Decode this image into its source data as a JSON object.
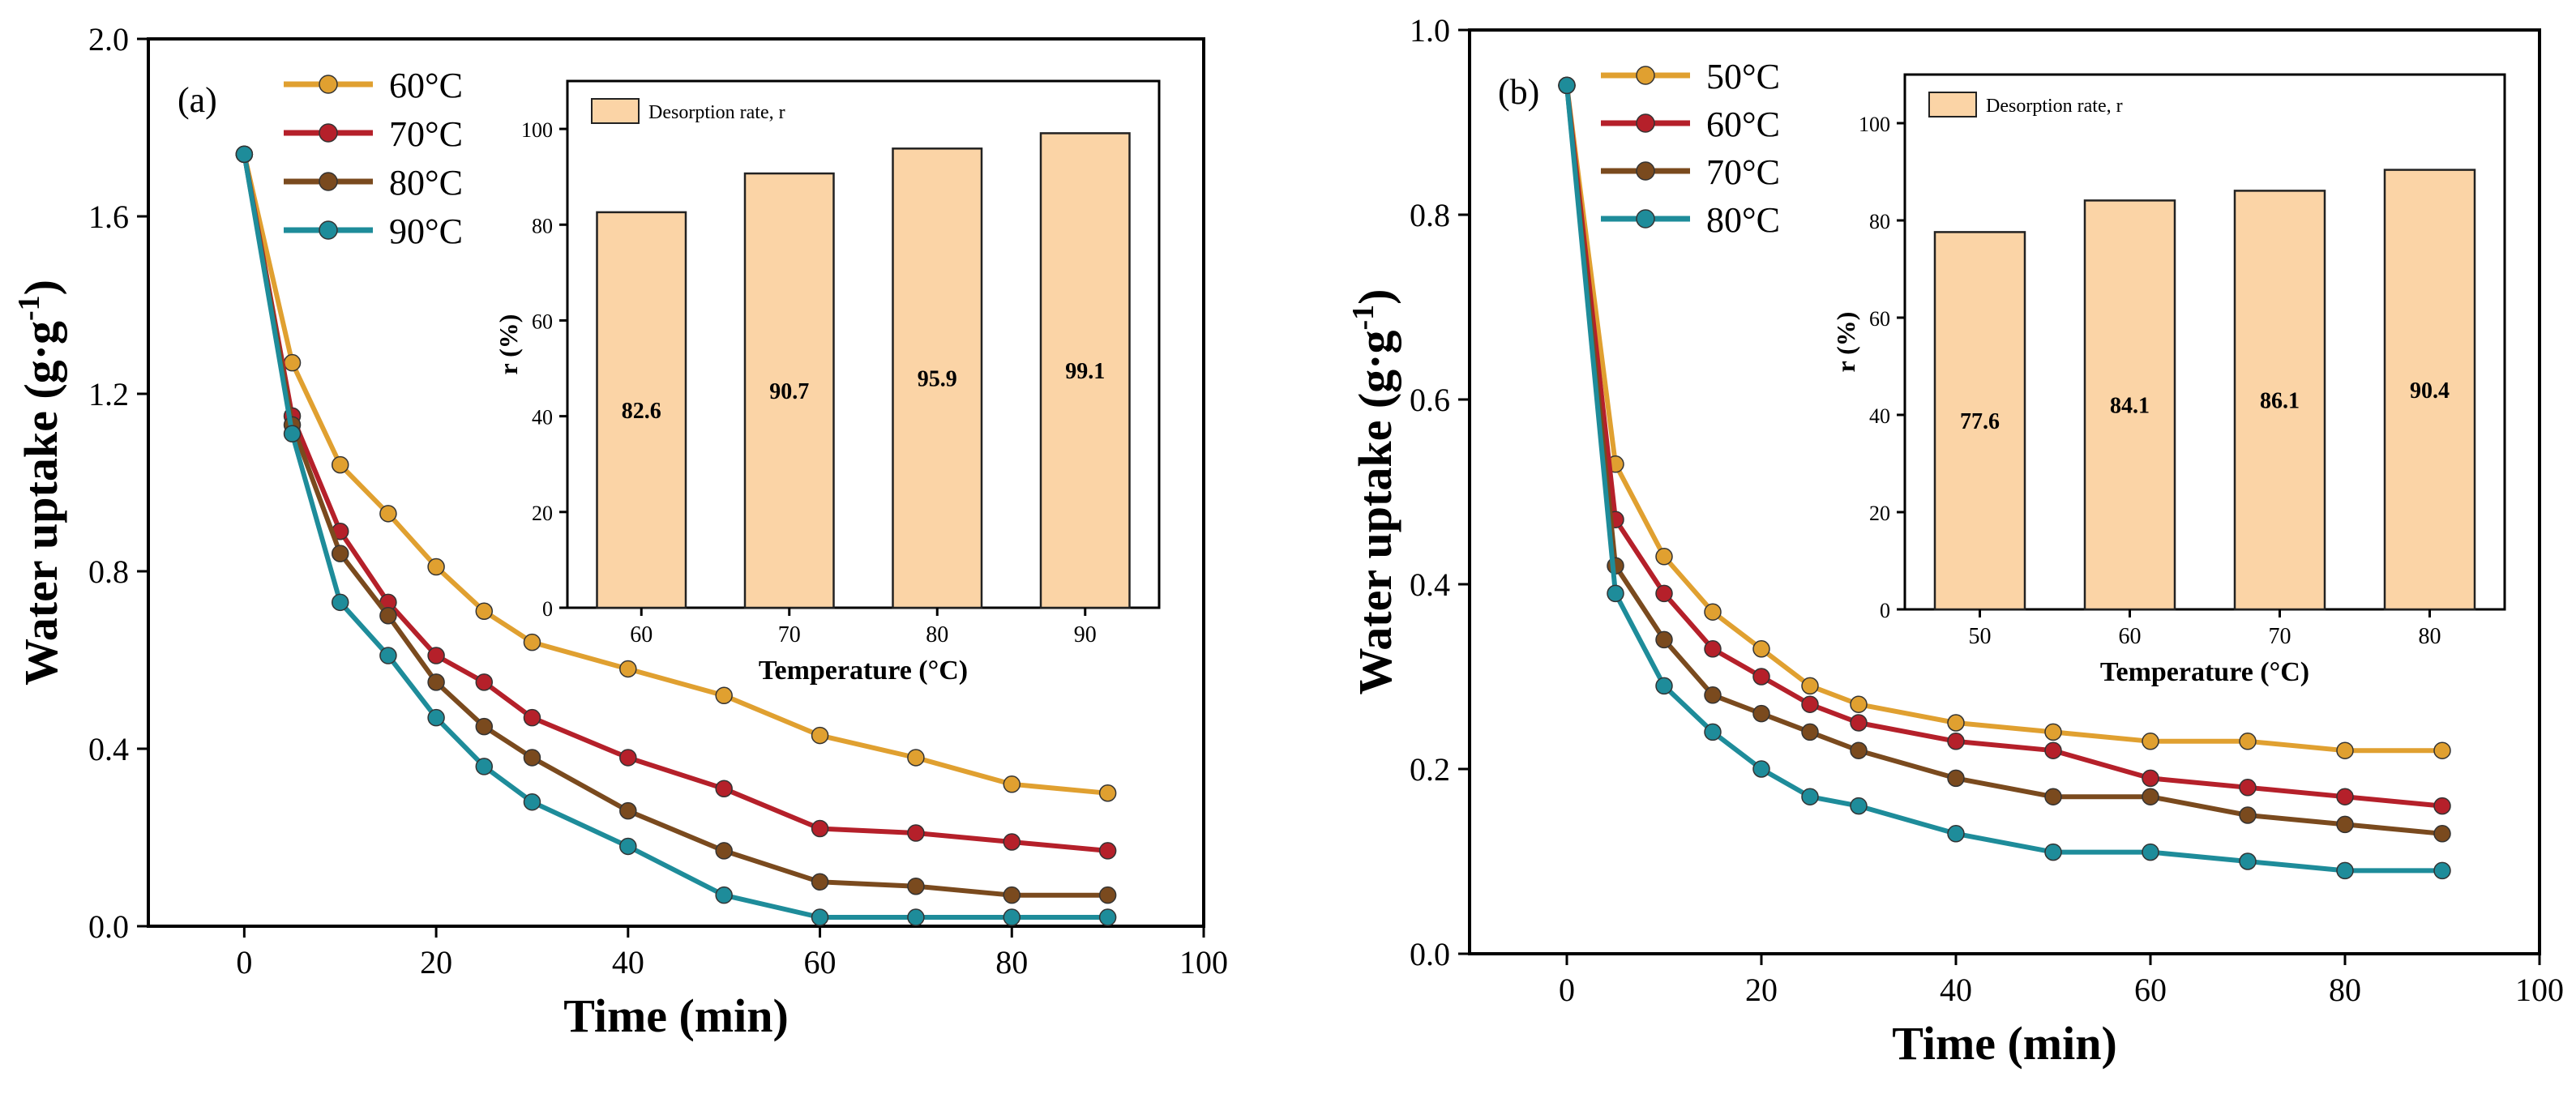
{
  "chart_data": [
    {
      "type": "line",
      "panel_label": "(a)",
      "xlabel": "Time (min)",
      "ylabel_main": "Water uptake (g·g",
      "ylabel_sup": "-1",
      "ylabel_end": ")",
      "xlim": [
        -10,
        100
      ],
      "ylim": [
        0,
        2.0
      ],
      "xticks": [
        0,
        20,
        40,
        60,
        80,
        100
      ],
      "xtick_labels": [
        "0",
        "20",
        "40",
        "60",
        "80",
        "100"
      ],
      "yticks": [
        0,
        0.4,
        0.8,
        1.2,
        1.6,
        2.0
      ],
      "ytick_labels": [
        "0.0",
        "0.4",
        "0.8",
        "1.2",
        "1.6",
        "2.0"
      ],
      "x": [
        0,
        5,
        10,
        15,
        20,
        25,
        30,
        40,
        50,
        60,
        70,
        80,
        90
      ],
      "series": [
        {
          "name": "60°C",
          "color": "#E0A030",
          "values": [
            1.74,
            1.27,
            1.04,
            0.93,
            0.81,
            0.71,
            0.64,
            0.58,
            0.52,
            0.43,
            0.38,
            0.32,
            0.3
          ]
        },
        {
          "name": "70°C",
          "color": "#B5202A",
          "values": [
            1.74,
            1.15,
            0.89,
            0.73,
            0.61,
            0.55,
            0.47,
            0.38,
            0.31,
            0.22,
            0.21,
            0.19,
            0.17
          ]
        },
        {
          "name": "80°C",
          "color": "#7A4A1E",
          "values": [
            1.74,
            1.13,
            0.84,
            0.7,
            0.55,
            0.45,
            0.38,
            0.26,
            0.17,
            0.1,
            0.09,
            0.07,
            0.07
          ]
        },
        {
          "name": "90°C",
          "color": "#1E8C9A",
          "values": [
            1.74,
            1.11,
            0.73,
            0.61,
            0.47,
            0.36,
            0.28,
            0.18,
            0.07,
            0.02,
            0.02,
            0.02,
            0.02
          ]
        }
      ],
      "inset": {
        "type": "bar",
        "legend_label": "Desorption rate, r",
        "xlabel": "Temperature (°C)",
        "ylabel": "r (%)",
        "categories": [
          "60",
          "70",
          "80",
          "90"
        ],
        "values": [
          82.6,
          90.7,
          95.9,
          99.1
        ],
        "value_labels": [
          "82.6",
          "90.7",
          "95.9",
          "99.1"
        ],
        "ylim": [
          0,
          110
        ],
        "yticks": [
          0,
          20,
          40,
          60,
          80,
          100
        ],
        "ytick_labels": [
          "0",
          "20",
          "40",
          "60",
          "80",
          "100"
        ],
        "bar_color": "#FBD4A6"
      }
    },
    {
      "type": "line",
      "panel_label": "(b)",
      "xlabel": "Time (min)",
      "ylabel_main": "Water uptake (g·g",
      "ylabel_sup": "-1",
      "ylabel_end": ")",
      "xlim": [
        -10,
        100
      ],
      "ylim": [
        0,
        1.0
      ],
      "xticks": [
        0,
        20,
        40,
        60,
        80,
        100
      ],
      "xtick_labels": [
        "0",
        "20",
        "40",
        "60",
        "80",
        "100"
      ],
      "yticks": [
        0,
        0.2,
        0.4,
        0.6,
        0.8,
        1.0
      ],
      "ytick_labels": [
        "0.0",
        "0.2",
        "0.4",
        "0.6",
        "0.8",
        "1.0"
      ],
      "x": [
        0,
        5,
        10,
        15,
        20,
        25,
        30,
        40,
        50,
        60,
        70,
        80,
        90
      ],
      "series": [
        {
          "name": "50°C",
          "color": "#E0A030",
          "values": [
            0.94,
            0.53,
            0.43,
            0.37,
            0.33,
            0.29,
            0.27,
            0.25,
            0.24,
            0.23,
            0.23,
            0.22,
            0.22
          ]
        },
        {
          "name": "60°C",
          "color": "#B5202A",
          "values": [
            0.94,
            0.47,
            0.39,
            0.33,
            0.3,
            0.27,
            0.25,
            0.23,
            0.22,
            0.19,
            0.18,
            0.17,
            0.16
          ]
        },
        {
          "name": "70°C",
          "color": "#7A4A1E",
          "values": [
            0.94,
            0.42,
            0.34,
            0.28,
            0.26,
            0.24,
            0.22,
            0.19,
            0.17,
            0.17,
            0.15,
            0.14,
            0.13
          ]
        },
        {
          "name": "80°C",
          "color": "#1E8C9A",
          "values": [
            0.94,
            0.39,
            0.29,
            0.24,
            0.2,
            0.17,
            0.16,
            0.13,
            0.11,
            0.11,
            0.1,
            0.09,
            0.09
          ]
        }
      ],
      "inset": {
        "type": "bar",
        "legend_label": "Desorption rate, r",
        "xlabel": "Temperature (°C)",
        "ylabel": "r (%)",
        "categories": [
          "50",
          "60",
          "70",
          "80"
        ],
        "values": [
          77.6,
          84.1,
          86.1,
          90.4
        ],
        "value_labels": [
          "77.6",
          "84.1",
          "86.1",
          "90.4"
        ],
        "ylim": [
          0,
          110
        ],
        "yticks": [
          0,
          20,
          40,
          60,
          80,
          100
        ],
        "ytick_labels": [
          "0",
          "20",
          "40",
          "60",
          "80",
          "100"
        ],
        "bar_color": "#FBD4A6"
      }
    }
  ]
}
